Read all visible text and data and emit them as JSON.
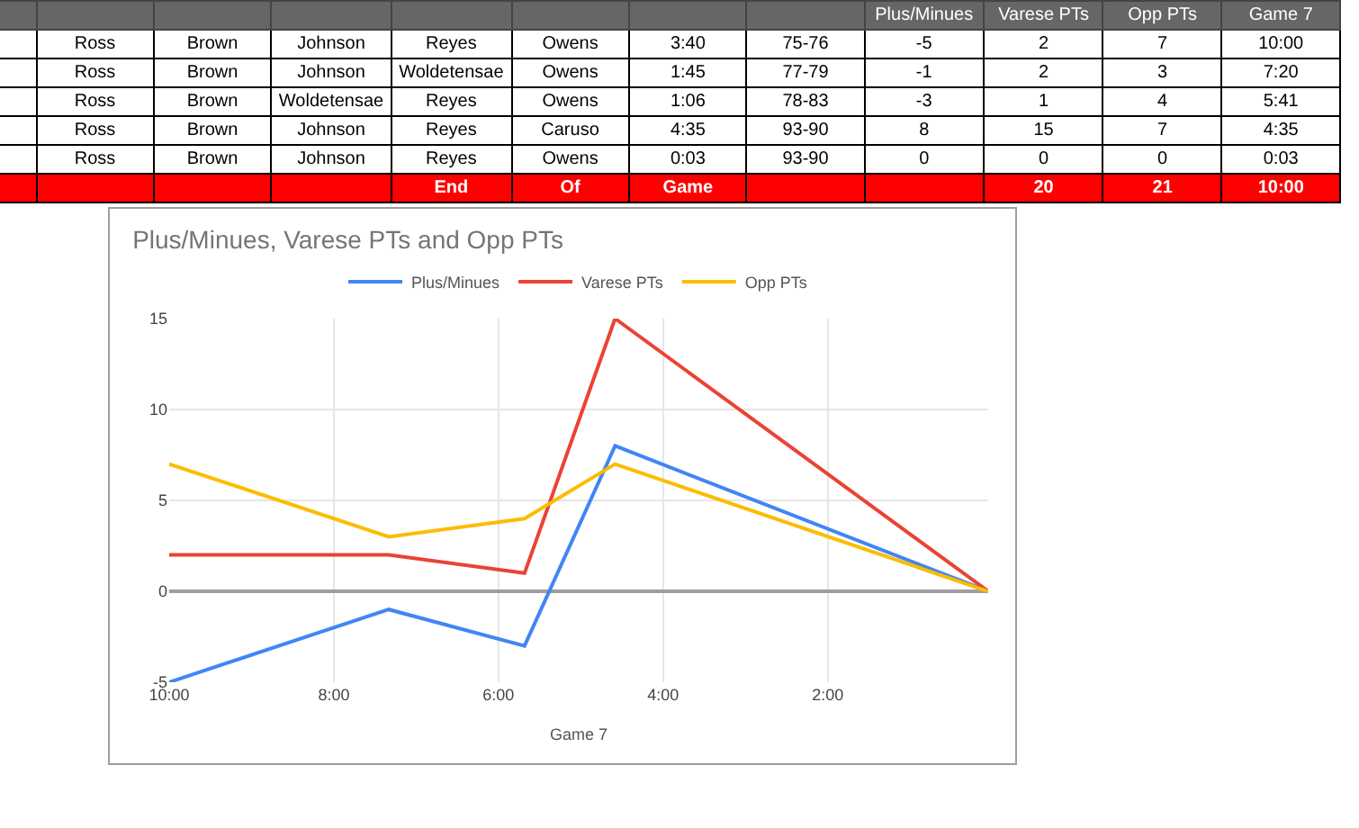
{
  "chart_data": [
    {
      "type": "other",
      "categories": [
        null,
        null,
        null,
        null,
        null,
        null,
        null,
        null,
        "Plus/Minues",
        "Varese PTs",
        "Opp PTs",
        "Game 7"
      ],
      "annotations": [
        null,
        "Ross",
        "Brown",
        "Johnson",
        "Reyes",
        "Owens",
        "3:40",
        "75-76",
        "-5",
        "2",
        "7",
        "10:00",
        null,
        "Ross",
        "Brown",
        "Johnson",
        "Woldetensae",
        "Owens",
        "1:45",
        "77-79",
        "-1",
        "2",
        "3",
        "7:20",
        null,
        "Ross",
        "Brown",
        "Woldetensae",
        "Reyes",
        "Owens",
        "1:06",
        "78-83",
        "-3",
        "1",
        "4",
        "5:41",
        null,
        "Ross",
        "Brown",
        "Johnson",
        "Reyes",
        "Caruso",
        "4:35",
        "93-90",
        "8",
        "15",
        "7",
        "4:35",
        null,
        "Ross",
        "Brown",
        "Johnson",
        "Reyes",
        "Owens",
        "0:03",
        "93-90",
        "0",
        "0",
        "0",
        "0:03",
        null,
        null,
        null,
        null,
        "End",
        "Of",
        "Game",
        null,
        null,
        "20",
        "21",
        "10:00"
      ]
    },
    {
      "type": "line",
      "title": "Plus/Minues, Varese PTs and Opp PTs",
      "xlabel": "Game 7",
      "x": [
        10,
        7.333,
        5.683,
        4.583,
        0.05
      ],
      "series": [
        {
          "name": "Plus/Minues",
          "color": "#4285f4",
          "values": [
            -5,
            -1,
            -3,
            8,
            0
          ]
        },
        {
          "name": "Varese PTs",
          "color": "#ea4335",
          "values": [
            2,
            2,
            1,
            15,
            0
          ]
        },
        {
          "name": "Opp PTs",
          "color": "#fbbc04",
          "values": [
            7,
            3,
            4,
            7,
            0
          ]
        }
      ],
      "xlim": [
        10,
        0.05
      ],
      "xticks": [
        {
          "value": 10,
          "label": "10:00"
        },
        {
          "value": 8,
          "label": "8:00"
        },
        {
          "value": 6,
          "label": "6:00"
        },
        {
          "value": 4,
          "label": "4:00"
        },
        {
          "value": 2,
          "label": "2:00"
        }
      ],
      "ylim": [
        -5,
        15
      ],
      "yticks": [
        -5,
        0,
        5,
        10,
        15
      ],
      "grid": true,
      "legend": "top",
      "marker": "none",
      "line_style": "solid"
    }
  ]
}
